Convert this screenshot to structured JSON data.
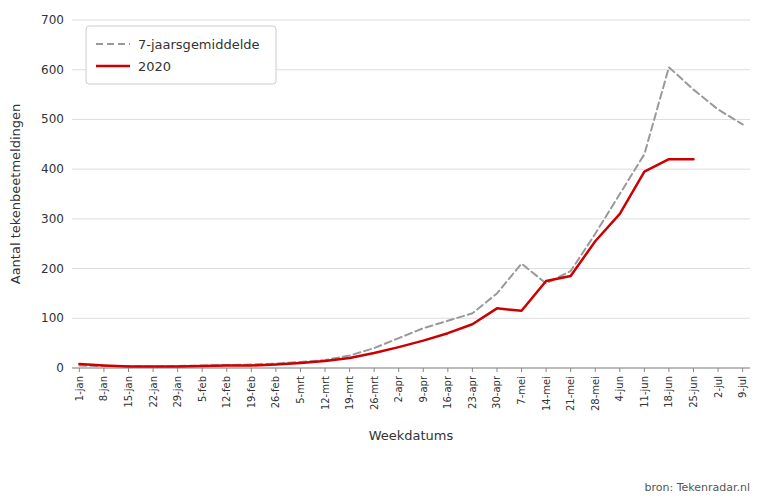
{
  "chart_data": {
    "type": "line",
    "xlabel": "Weekdatums",
    "ylabel": "Aantal tekenbeetmeldingen",
    "annotations": [
      "bron: Tekenradar.nl"
    ],
    "categories": [
      "1-jan",
      "8-jan",
      "15-jan",
      "22-jan",
      "29-jan",
      "5-feb",
      "12-feb",
      "19-feb",
      "26-feb",
      "5-mrt",
      "12-mrt",
      "19-mrt",
      "26-mrt",
      "2-apr",
      "9-apr",
      "16-apr",
      "23-apr",
      "30-apr",
      "7-mei",
      "14-mei",
      "21-mei",
      "28-mei",
      "4-jun",
      "11-jun",
      "18-jun",
      "25-jun",
      "2-jul",
      "9-jul"
    ],
    "series": [
      {
        "name": "7-jaarsgemiddelde",
        "color": "#999999",
        "line_style": "dashed",
        "values": [
          5,
          4,
          4,
          3,
          4,
          5,
          6,
          7,
          9,
          12,
          16,
          25,
          40,
          60,
          80,
          95,
          110,
          150,
          210,
          170,
          195,
          270,
          350,
          430,
          605,
          560,
          520,
          490
        ]
      },
      {
        "name": "2020",
        "color": "#cc0000",
        "line_style": "solid",
        "values": [
          8,
          5,
          3,
          3,
          3,
          4,
          5,
          5,
          7,
          10,
          14,
          20,
          30,
          42,
          55,
          70,
          88,
          120,
          115,
          175,
          185,
          255,
          310,
          395,
          420,
          420,
          null,
          null
        ]
      }
    ],
    "ylim": [
      0,
      700
    ],
    "yticks": [
      0,
      100,
      200,
      300,
      400,
      500,
      600,
      700
    ],
    "grid": true,
    "legend": "upper left"
  }
}
